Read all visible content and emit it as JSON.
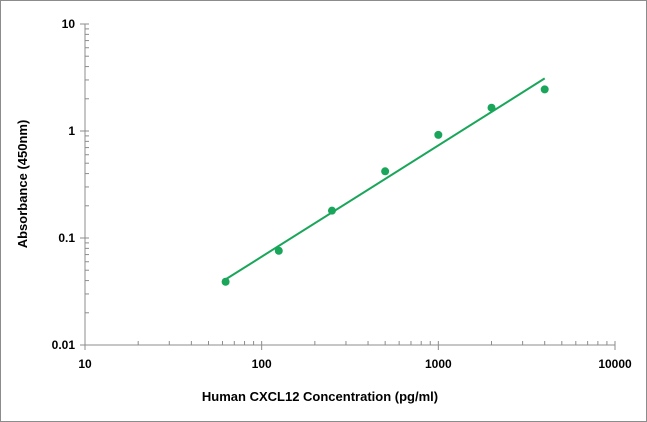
{
  "chart_data": {
    "type": "scatter",
    "title": "",
    "xlabel": "Human CXCL12 Concentration (pg/ml)",
    "ylabel": "Absorbance (450nm)",
    "xscale": "log",
    "yscale": "log",
    "xlim": [
      10,
      10000
    ],
    "ylim": [
      0.01,
      10
    ],
    "x_tick_labels": [
      "10",
      "100",
      "1000",
      "10000"
    ],
    "y_tick_labels": [
      "0.01",
      "0.1",
      "1",
      "10"
    ],
    "grid": false,
    "legend": "none",
    "series": [
      {
        "type": "scatter",
        "color": "#1aa65a",
        "points": [
          {
            "x": 62.5,
            "y": 0.039
          },
          {
            "x": 125,
            "y": 0.076
          },
          {
            "x": 250,
            "y": 0.18
          },
          {
            "x": 500,
            "y": 0.42
          },
          {
            "x": 1000,
            "y": 0.92
          },
          {
            "x": 2000,
            "y": 1.65
          },
          {
            "x": 4000,
            "y": 2.45
          }
        ]
      },
      {
        "type": "line",
        "color": "#1aa65a",
        "points": [
          {
            "x": 62.5,
            "y": 0.041
          },
          {
            "x": 4000,
            "y": 3.1
          }
        ]
      }
    ]
  }
}
